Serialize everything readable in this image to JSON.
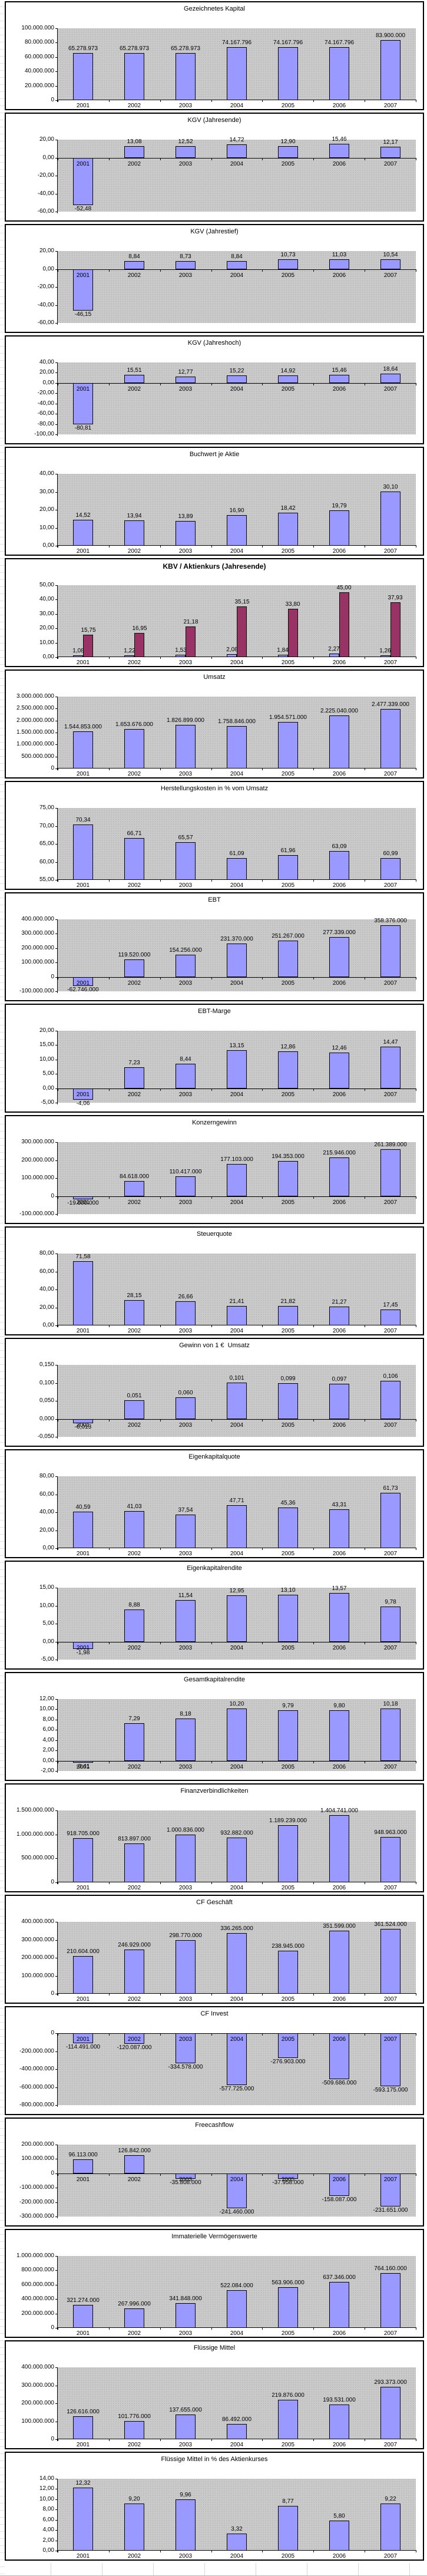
{
  "years": [
    "2001",
    "2002",
    "2003",
    "2004",
    "2005",
    "2006",
    "2007"
  ],
  "colors": {
    "series1": "#9999FF",
    "series2": "#993366",
    "plot_bg": "#C0C0C0",
    "chart_border": "#000000"
  },
  "chart_data": [
    {
      "type": "bar",
      "slug": "gezeichnetes-kapital",
      "title": "Gezeichnetes Kapital",
      "title_bold": false,
      "ylim": [
        0,
        100000000
      ],
      "ystep": 20000000,
      "yticks": [
        "100.000.000",
        "80.000.000",
        "60.000.000",
        "40.000.000",
        "20.000.000",
        "0"
      ],
      "series": [
        {
          "values": [
            65278973,
            65278973,
            65278973,
            74167796,
            74167796,
            74167796,
            83900000
          ],
          "labels": [
            "65.278.973",
            "65.278.973",
            "65.278.973",
            "74.167.796",
            "74.167.796",
            "74.167.796",
            "83.900.000"
          ]
        }
      ]
    },
    {
      "type": "bar",
      "slug": "kgv-jahresende",
      "title": "KGV (Jahresende)",
      "title_bold": false,
      "ylim": [
        -60,
        20
      ],
      "ystep": 20,
      "yticks": [
        "20,00",
        "0,00",
        "-20,00",
        "-40,00",
        "-60,00"
      ],
      "series": [
        {
          "values": [
            -52.48,
            13.08,
            12.52,
            14.72,
            12.9,
            15.46,
            12.17
          ],
          "labels": [
            "-52,48",
            "13,08",
            "12,52",
            "14,72",
            "12,90",
            "15,46",
            "12,17"
          ]
        }
      ]
    },
    {
      "type": "bar",
      "slug": "kgv-jahrestief",
      "title": "KGV (Jahrestief)",
      "title_bold": false,
      "ylim": [
        -60,
        20
      ],
      "ystep": 20,
      "yticks": [
        "20,00",
        "0,00",
        "-20,00",
        "-40,00",
        "-60,00"
      ],
      "series": [
        {
          "values": [
            -46.15,
            8.84,
            8.73,
            8.84,
            10.73,
            11.03,
            10.54
          ],
          "labels": [
            "-46,15",
            "8,84",
            "8,73",
            "8,84",
            "10,73",
            "11,03",
            "10,54"
          ]
        }
      ]
    },
    {
      "type": "bar",
      "slug": "kgv-jahreshoch",
      "title": "KGV (Jahreshoch)",
      "title_bold": false,
      "ylim": [
        -100,
        40
      ],
      "ystep": 20,
      "yticks": [
        "40,00",
        "20,00",
        "0,00",
        "-20,00",
        "-40,00",
        "-60,00",
        "-80,00",
        "-100,00"
      ],
      "series": [
        {
          "values": [
            -80.81,
            15.51,
            12.77,
            15.22,
            14.92,
            15.46,
            18.64
          ],
          "labels": [
            "-80,81",
            "15,51",
            "12,77",
            "15,22",
            "14,92",
            "15,46",
            "18,64"
          ]
        }
      ]
    },
    {
      "type": "bar",
      "slug": "buchwert-je-aktie",
      "title": "Buchwert je Aktie",
      "title_bold": false,
      "ylim": [
        0,
        40
      ],
      "ystep": 10,
      "yticks": [
        "40,00",
        "30,00",
        "20,00",
        "10,00",
        "0,00"
      ],
      "series": [
        {
          "values": [
            14.52,
            13.94,
            13.89,
            16.9,
            18.42,
            19.79,
            30.1
          ],
          "labels": [
            "14,52",
            "13,94",
            "13,89",
            "16,90",
            "18,42",
            "19,79",
            "30,10"
          ]
        }
      ]
    },
    {
      "type": "bar",
      "slug": "kbv-aktienkurs-jahresende",
      "title": "KBV / Aktienkurs (Jahresende)",
      "title_bold": true,
      "ylim": [
        0,
        50
      ],
      "ystep": 10,
      "yticks": [
        "50,00",
        "40,00",
        "30,00",
        "20,00",
        "10,00",
        "0,00"
      ],
      "series": [
        {
          "values": [
            1.08,
            1.22,
            1.53,
            2.08,
            1.84,
            2.27,
            1.26
          ],
          "labels": [
            "1,08",
            "1,22",
            "1,53",
            "2,08",
            "1,84",
            "2,27",
            "1,26"
          ]
        },
        {
          "values": [
            15.75,
            16.95,
            21.18,
            35.15,
            33.8,
            45.0,
            37.93
          ],
          "labels": [
            "15,75",
            "16,95",
            "21,18",
            "35,15",
            "33,80",
            "45,00",
            "37,93"
          ]
        }
      ]
    },
    {
      "type": "bar",
      "slug": "umsatz",
      "title": "Umsatz",
      "title_bold": false,
      "ylim": [
        0,
        3000000000
      ],
      "ystep": 500000000,
      "yticks": [
        "3.000.000.000",
        "2.500.000.000",
        "2.000.000.000",
        "1.500.000.000",
        "1.000.000.000",
        "500.000.000",
        "0"
      ],
      "series": [
        {
          "values": [
            1544853000,
            1653676000,
            1826899000,
            1758846000,
            1954571000,
            2225040000,
            2477339000
          ],
          "labels": [
            "1.544.853.000",
            "1.653.676.000",
            "1.826.899.000",
            "1.758.846.000",
            "1.954.571.000",
            "2.225.040.000",
            "2.477.339.000"
          ]
        }
      ]
    },
    {
      "type": "bar",
      "slug": "herstellungskosten",
      "title": "Herstellungskosten in % vom Umsatz",
      "title_bold": false,
      "ylim": [
        55,
        75
      ],
      "ystep": 5,
      "yticks": [
        "75,00",
        "70,00",
        "65,00",
        "60,00",
        "55,00"
      ],
      "series": [
        {
          "values": [
            70.34,
            66.71,
            65.57,
            61.09,
            61.96,
            63.09,
            60.99
          ],
          "labels": [
            "70,34",
            "66,71",
            "65,57",
            "61,09",
            "61,96",
            "63,09",
            "60,99"
          ]
        }
      ]
    },
    {
      "type": "bar",
      "slug": "ebt",
      "title": "EBT",
      "title_bold": false,
      "ylim": [
        -100000000,
        400000000
      ],
      "ystep": 100000000,
      "yticks": [
        "400.000.000",
        "300.000.000",
        "200.000.000",
        "100.000.000",
        "0",
        "-100.000.000"
      ],
      "series": [
        {
          "values": [
            -62746000,
            119520000,
            154256000,
            231370000,
            251267000,
            277339000,
            358376000
          ],
          "labels": [
            "-62.746.000",
            "119.520.000",
            "154.256.000",
            "231.370.000",
            "251.267.000",
            "277.339.000",
            "358.376.000"
          ]
        }
      ]
    },
    {
      "type": "bar",
      "slug": "ebt-marge",
      "title": "EBT-Marge",
      "title_bold": false,
      "ylim": [
        -5,
        20
      ],
      "ystep": 5,
      "yticks": [
        "20,00",
        "15,00",
        "10,00",
        "5,00",
        "0,00",
        "-5,00"
      ],
      "series": [
        {
          "values": [
            -4.06,
            7.23,
            8.44,
            13.15,
            12.86,
            12.46,
            14.47
          ],
          "labels": [
            "-4,06",
            "7,23",
            "8,44",
            "13,15",
            "12,86",
            "12,46",
            "14,47"
          ]
        }
      ]
    },
    {
      "type": "bar",
      "slug": "konzerngewinn",
      "title": "Konzerngewinn",
      "title_bold": false,
      "ylim": [
        -100000000,
        300000000
      ],
      "ystep": 100000000,
      "yticks": [
        "300.000.000",
        "200.000.000",
        "100.000.000",
        "0",
        "-100.000.000"
      ],
      "series": [
        {
          "values": [
            -19600000,
            84618000,
            110417000,
            177103000,
            194353000,
            215946000,
            261389000
          ],
          "labels": [
            "-19.600.000",
            "84.618.000",
            "110.417.000",
            "177.103.000",
            "194.353.000",
            "215.946.000",
            "261.389.000"
          ]
        }
      ]
    },
    {
      "type": "bar",
      "slug": "steuerquote",
      "title": "Steuerquote",
      "title_bold": false,
      "ylim": [
        0,
        80
      ],
      "ystep": 20,
      "yticks": [
        "80,00",
        "60,00",
        "40,00",
        "20,00",
        "0,00"
      ],
      "series": [
        {
          "values": [
            71.58,
            28.15,
            26.66,
            21.41,
            21.82,
            21.27,
            17.45
          ],
          "labels": [
            "71,58",
            "28,15",
            "26,66",
            "21,41",
            "21,82",
            "21,27",
            "17,45"
          ]
        }
      ]
    },
    {
      "type": "bar",
      "slug": "gewinn-je-euro-umsatz",
      "title": "Gewinn von 1 €  Umsatz",
      "title_bold": false,
      "ylim": [
        -0.05,
        0.15
      ],
      "ystep": 0.05,
      "yticks": [
        "0,150",
        "0,100",
        "0,050",
        "0,000",
        "-0,050"
      ],
      "series": [
        {
          "values": [
            -0.013,
            0.051,
            0.06,
            0.101,
            0.099,
            0.097,
            0.106
          ],
          "labels": [
            "-0,013",
            "0,051",
            "0,060",
            "0,101",
            "0,099",
            "0,097",
            "0,106"
          ]
        }
      ]
    },
    {
      "type": "bar",
      "slug": "eigenkapitalquote",
      "title": "Eigenkapitalquote",
      "title_bold": false,
      "ylim": [
        0,
        80
      ],
      "ystep": 20,
      "yticks": [
        "80,00",
        "60,00",
        "40,00",
        "20,00",
        "0,00"
      ],
      "series": [
        {
          "values": [
            40.59,
            41.03,
            37.54,
            47.71,
            45.36,
            43.31,
            61.73
          ],
          "labels": [
            "40,59",
            "41,03",
            "37,54",
            "47,71",
            "45,36",
            "43,31",
            "61,73"
          ]
        }
      ]
    },
    {
      "type": "bar",
      "slug": "eigenkapitalrendite",
      "title": "Eigenkapitalrendite",
      "title_bold": false,
      "ylim": [
        -5,
        15
      ],
      "ystep": 5,
      "yticks": [
        "15,00",
        "10,00",
        "5,00",
        "0,00",
        "-5,00"
      ],
      "series": [
        {
          "values": [
            -1.98,
            8.88,
            11.54,
            12.95,
            13.1,
            13.57,
            9.78
          ],
          "labels": [
            "-1,98",
            "8,88",
            "11,54",
            "12,95",
            "13,10",
            "13,57",
            "9,78"
          ]
        }
      ]
    },
    {
      "type": "bar",
      "slug": "gesamtkapitalrendite",
      "title": "Gesamtkapitalrendite",
      "title_bold": false,
      "ylim": [
        -2,
        12
      ],
      "ystep": 2,
      "yticks": [
        "12,00",
        "10,00",
        "8,00",
        "6,00",
        "4,00",
        "2,00",
        "0,00",
        "-2,00"
      ],
      "series": [
        {
          "values": [
            -0.41,
            7.29,
            8.18,
            10.2,
            9.79,
            9.8,
            10.18
          ],
          "labels": [
            "-0,41",
            "7,29",
            "8,18",
            "10,20",
            "9,79",
            "9,80",
            "10,18"
          ]
        }
      ]
    },
    {
      "type": "bar",
      "slug": "finanzverbindlichkeiten",
      "title": "Finanzverbindlichkeiten",
      "title_bold": false,
      "ylim": [
        0,
        1500000000
      ],
      "ystep": 500000000,
      "yticks": [
        "1.500.000.000",
        "1.000.000.000",
        "500.000.000",
        "0"
      ],
      "series": [
        {
          "values": [
            918705000,
            813897000,
            1000836000,
            932882000,
            1189239000,
            1404741000,
            948963000
          ],
          "labels": [
            "918.705.000",
            "813.897.000",
            "1.000.836.000",
            "932.882.000",
            "1.189.239.000",
            "1.404.741.000",
            "948.963.000"
          ]
        }
      ]
    },
    {
      "type": "bar",
      "slug": "cf-geschaeft",
      "title": "CF Geschäft",
      "title_bold": false,
      "ylim": [
        0,
        400000000
      ],
      "ystep": 100000000,
      "yticks": [
        "400.000.000",
        "300.000.000",
        "200.000.000",
        "100.000.000",
        "0"
      ],
      "series": [
        {
          "values": [
            210604000,
            246929000,
            298770000,
            336265000,
            238945000,
            351599000,
            361524000
          ],
          "labels": [
            "210.604.000",
            "246.929.000",
            "298.770.000",
            "336.265.000",
            "238.945.000",
            "351.599.000",
            "361.524.000"
          ]
        }
      ]
    },
    {
      "type": "bar",
      "slug": "cf-invest",
      "title": "CF Invest",
      "title_bold": false,
      "ylim": [
        -800000000,
        0
      ],
      "ystep": 200000000,
      "yticks": [
        "0",
        "-200.000.000",
        "-400.000.000",
        "-600.000.000",
        "-800.000.000"
      ],
      "series": [
        {
          "values": [
            -114491000,
            -120087000,
            -334578000,
            -577725000,
            -276903000,
            -509686000,
            -593175000
          ],
          "labels": [
            "-114.491.000",
            "-120.087.000",
            "-334.578.000",
            "-577.725.000",
            "-276.903.000",
            "-509.686.000",
            "-593.175.000"
          ]
        }
      ]
    },
    {
      "type": "bar",
      "slug": "freecashflow",
      "title": "Freecashflow",
      "title_bold": false,
      "ylim": [
        -300000000,
        200000000
      ],
      "ystep": 100000000,
      "yticks": [
        "200.000.000",
        "100.000.000",
        "0",
        "-100.000.000",
        "-200.000.000",
        "-300.000.000"
      ],
      "series": [
        {
          "values": [
            96113000,
            126842000,
            -35808000,
            -241460000,
            -37958000,
            -158087000,
            -231651000
          ],
          "labels": [
            "96.113.000",
            "126.842.000",
            "-35.808.000",
            "-241.460.000",
            "-37.958.000",
            "-158.087.000",
            "-231.651.000"
          ]
        }
      ]
    },
    {
      "type": "bar",
      "slug": "immaterielle-vermoegenswerte",
      "title": "Immaterielle Vermögenswerte",
      "title_bold": false,
      "ylim": [
        0,
        1000000000
      ],
      "ystep": 200000000,
      "yticks": [
        "1.000.000.000",
        "800.000.000",
        "600.000.000",
        "400.000.000",
        "200.000.000",
        "0"
      ],
      "series": [
        {
          "values": [
            321274000,
            267996000,
            341848000,
            522084000,
            563906000,
            637346000,
            764160000
          ],
          "labels": [
            "321.274.000",
            "267.996.000",
            "341.848.000",
            "522.084.000",
            "563.906.000",
            "637.346.000",
            "764.160.000"
          ]
        }
      ]
    },
    {
      "type": "bar",
      "slug": "fluessige-mittel",
      "title": "Flüssige Mittel",
      "title_bold": false,
      "ylim": [
        0,
        400000000
      ],
      "ystep": 100000000,
      "yticks": [
        "400.000.000",
        "300.000.000",
        "200.000.000",
        "100.000.000",
        "0"
      ],
      "series": [
        {
          "values": [
            126616000,
            101776000,
            137655000,
            86492000,
            219876000,
            193531000,
            293373000
          ],
          "labels": [
            "126.616.000",
            "101.776.000",
            "137.655.000",
            "86.492.000",
            "219.876.000",
            "193.531.000",
            "293.373.000"
          ]
        }
      ]
    },
    {
      "type": "bar",
      "slug": "fluessige-mittel-prozent-aktienkurs",
      "title": "Flüssige Mittel in % des Aktienkurses",
      "title_bold": false,
      "ylim": [
        0,
        14
      ],
      "ystep": 2,
      "yticks": [
        "14,00",
        "12,00",
        "10,00",
        "8,00",
        "6,00",
        "4,00",
        "2,00",
        "0,00"
      ],
      "series": [
        {
          "values": [
            12.32,
            9.2,
            9.96,
            3.32,
            8.77,
            5.8,
            9.22
          ],
          "labels": [
            "12,32",
            "9,20",
            "9,96",
            "3,32",
            "8,77",
            "5,80",
            "9,22"
          ]
        }
      ]
    }
  ]
}
